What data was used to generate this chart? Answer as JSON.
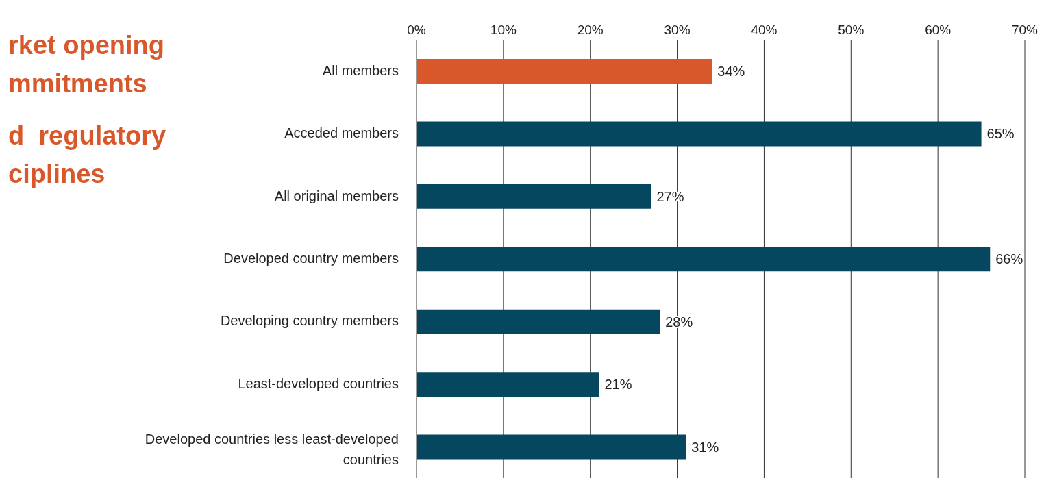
{
  "chart_data": {
    "type": "bar",
    "orientation": "horizontal",
    "categories": [
      "All members",
      "Acceded members",
      "All original members",
      "Developed country members",
      "Developing country members",
      "Least-developed countries",
      "Developed countries less least-developed countries"
    ],
    "values": [
      34,
      65,
      27,
      66,
      28,
      21,
      31
    ],
    "colors": [
      "#d9582b",
      "#064760",
      "#064760",
      "#064760",
      "#064760",
      "#064760",
      "#064760"
    ],
    "value_labels": [
      "34%",
      "65%",
      "27%",
      "66%",
      "28%",
      "21%",
      "31%"
    ],
    "xlim": [
      0,
      70
    ],
    "xticks": [
      {
        "value": 0,
        "label": "0%"
      },
      {
        "value": 10,
        "label": "10%"
      },
      {
        "value": 20,
        "label": "20%"
      },
      {
        "value": 30,
        "label": "30%"
      },
      {
        "value": 40,
        "label": "40%"
      },
      {
        "value": 50,
        "label": "50%"
      },
      {
        "value": 60,
        "label": "60%"
      },
      {
        "value": 70,
        "label": "70%"
      }
    ],
    "grid": "x",
    "annotations": [
      "rket opening",
      "mmitments",
      "d  regulatory",
      "ciplines"
    ]
  }
}
